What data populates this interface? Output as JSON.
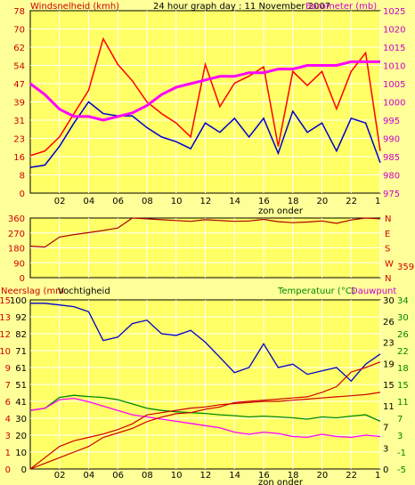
{
  "header": {
    "left_title": "Windsnelheid (kmh)",
    "center_title": "24 hour graph day : 11 November 2007",
    "right_title": "Barometer (mb)"
  },
  "colors": {
    "background": "#ffff99",
    "plot_bg": "#ffff66",
    "grid": "#ffffff",
    "wind_gust": "#ff0000",
    "wind_avg": "#0000cc",
    "barometer": "#ff00ff",
    "wind_dir": "#aa0000",
    "rain_day": "#cc0000",
    "rain_rate": "#cc0000",
    "humidity": "#0000cc",
    "temperature": "#008800",
    "dewpoint": "#ff00ff",
    "label_red": "#cc0000",
    "label_pink": "#cc00cc",
    "label_green": "#008800",
    "label_dark": "#000000"
  },
  "x_axis": {
    "ticks": [
      "02",
      "04",
      "06",
      "08",
      "10",
      "12",
      "14",
      "16",
      "18",
      "20",
      "22",
      "1"
    ],
    "label": "zon onder"
  },
  "chart_data": [
    {
      "type": "line",
      "title": "24 hour graph day : 11 November 2007",
      "ylabel": "Windsnelheid (kmh)",
      "y2label": "Barometer (mb)",
      "ylim": [
        0,
        78
      ],
      "y2lim": [
        975,
        1025
      ],
      "yticks": [
        "0",
        "8",
        "16",
        "23",
        "31",
        "39",
        "47",
        "54",
        "62",
        "70",
        "78"
      ],
      "y2ticks": [
        "975",
        "980",
        "985",
        "990",
        "995",
        "1000",
        "1005",
        "1010",
        "1015",
        "1020",
        "1025"
      ],
      "x": [
        0,
        1,
        2,
        3,
        4,
        5,
        6,
        7,
        8,
        9,
        10,
        11,
        12,
        13,
        14,
        15,
        16,
        17,
        18,
        19,
        20,
        21,
        22,
        23,
        24
      ],
      "series": [
        {
          "name": "gust",
          "axis": "y",
          "values": [
            16,
            18,
            24,
            34,
            44,
            66,
            55,
            48,
            39,
            34,
            30,
            24,
            55,
            37,
            47,
            50,
            54,
            20,
            52,
            46,
            52,
            36,
            52,
            60,
            18
          ]
        },
        {
          "name": "average",
          "axis": "y",
          "values": [
            11,
            12,
            20,
            30,
            39,
            34,
            33,
            33,
            28,
            24,
            22,
            19,
            30,
            26,
            32,
            24,
            32,
            17,
            35,
            26,
            30,
            18,
            32,
            30,
            13
          ]
        },
        {
          "name": "barometer",
          "axis": "y2",
          "values": [
            1005,
            1002,
            998,
            996,
            996,
            995,
            996,
            997,
            999,
            1002,
            1004,
            1005,
            1006,
            1007,
            1007,
            1008,
            1008,
            1009,
            1009,
            1010,
            1010,
            1010,
            1011,
            1011,
            1011
          ]
        }
      ]
    },
    {
      "type": "line",
      "ylabel": "",
      "ylim": [
        0,
        360
      ],
      "yticks": [
        "0",
        "90",
        "180",
        "270",
        "360"
      ],
      "right_labels": [
        "N",
        "W",
        "S",
        "E",
        "N"
      ],
      "right_value": "359",
      "x": [
        0,
        1,
        2,
        3,
        4,
        5,
        6,
        7,
        8,
        9,
        10,
        11,
        12,
        13,
        14,
        15,
        16,
        17,
        18,
        19,
        20,
        21,
        22,
        23,
        24
      ],
      "series": [
        {
          "name": "wind direction",
          "values": [
            190,
            185,
            245,
            260,
            272,
            285,
            300,
            360,
            355,
            350,
            345,
            340,
            350,
            345,
            340,
            342,
            352,
            338,
            332,
            336,
            342,
            328,
            348,
            360,
            355
          ]
        }
      ]
    },
    {
      "type": "line",
      "ylabel": "Neerslag (mm",
      "y2label": "Vochtigheid",
      "y3label": "Temperatuur (°C)",
      "y4label": "Dauwpunt",
      "ylim": [
        0,
        15
      ],
      "yticks_rain": [
        "0",
        "1",
        "3",
        "4",
        "6",
        "7",
        "9",
        "10",
        "12",
        "13",
        "15"
      ],
      "yticks_hum": [
        "0",
        "10",
        "20",
        "30",
        "41",
        "51",
        "61",
        "71",
        "82",
        "92",
        "100"
      ],
      "yticks_temp": [
        "-5",
        "-1",
        "3",
        "7",
        "11",
        "15",
        "18",
        "22",
        "26",
        "30",
        "34"
      ],
      "yticks_dew": [
        "0",
        "3",
        "7",
        "11",
        "15",
        "19",
        "23",
        "26",
        "30"
      ],
      "x": [
        0,
        1,
        2,
        3,
        4,
        5,
        6,
        7,
        8,
        9,
        10,
        11,
        12,
        13,
        14,
        15,
        16,
        17,
        18,
        19,
        20,
        21,
        22,
        23,
        24
      ],
      "series": [
        {
          "name": "humidity",
          "values": [
            98,
            98,
            97,
            96,
            93,
            76,
            78,
            86,
            88,
            80,
            79,
            82,
            75,
            66,
            57,
            60,
            74,
            60,
            62,
            56,
            58,
            60,
            52,
            62,
            68
          ]
        },
        {
          "name": "temperature",
          "values": [
            8.5,
            9,
            11.5,
            12,
            11.7,
            11.5,
            11,
            10,
            9,
            8.5,
            8.2,
            8,
            7.8,
            7.5,
            7.3,
            7,
            7.2,
            7,
            6.8,
            6.5,
            7,
            6.8,
            7.2,
            7.5,
            6
          ]
        },
        {
          "name": "dewpoint",
          "values": [
            8.5,
            9,
            11,
            11.3,
            10.5,
            9.5,
            8.5,
            7.5,
            7,
            6.5,
            6,
            5.5,
            5,
            4.5,
            3.5,
            3,
            3.5,
            3.2,
            2.5,
            2.3,
            3,
            2.5,
            2.3,
            2.8,
            2.5
          ]
        },
        {
          "name": "rain total",
          "values": [
            0,
            0.5,
            1,
            1.5,
            2,
            2.8,
            3.2,
            3.6,
            4.2,
            4.6,
            4.9,
            5,
            5.3,
            5.5,
            5.9,
            6,
            6.1,
            6.2,
            6.3,
            6.4,
            6.8,
            7.3,
            8.6,
            9,
            9.5
          ]
        },
        {
          "name": "rain rate",
          "values": [
            0,
            1,
            2,
            2.5,
            2.8,
            3.1,
            3.5,
            4,
            4.8,
            5,
            5.2,
            5.4,
            5.5,
            5.7,
            5.8,
            5.9,
            6,
            6,
            6.1,
            6.2,
            6.3,
            6.4,
            6.5,
            6.6,
            6.8
          ]
        }
      ]
    }
  ]
}
